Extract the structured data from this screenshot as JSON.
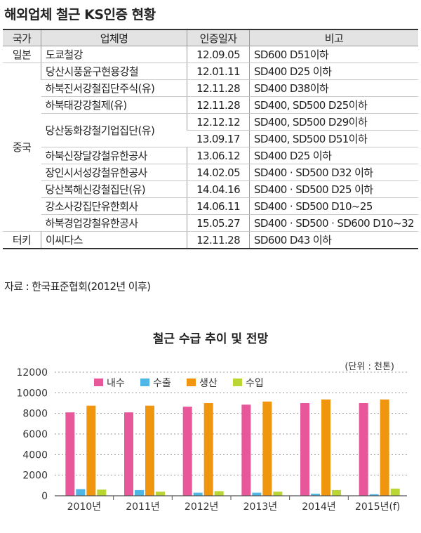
{
  "table": {
    "title": "해외업체 철근 KS인증 현황",
    "headers": [
      "국가",
      "업체명",
      "인증일자",
      "비고"
    ],
    "rows": [
      {
        "country": "일본",
        "company": "도쿄철강",
        "date": "12.09.05",
        "note": "SD600 D51이하"
      },
      {
        "country": "중국",
        "company": "당산시풍윤구현용강철",
        "date": "12.01.11",
        "note": "SD400 D25 이하"
      },
      {
        "country": "",
        "company": "하북진서강철집단주식(유)",
        "date": "12.11.28",
        "note": "SD400 D38이하"
      },
      {
        "country": "",
        "company": "하북태강강철제(유)",
        "date": "12.11.28",
        "note": "SD400, SD500 D25이하"
      },
      {
        "country": "",
        "company": "당산동화강철기업집단(유)",
        "date": "12.12.12",
        "note": "SD400, SD500 D29이하"
      },
      {
        "country": "",
        "company": "",
        "date": "13.09.17",
        "note": "SD400, SD500 D51이하"
      },
      {
        "country": "",
        "company": "하북신장달강철유한공사",
        "date": "13.06.12",
        "note": "SD400 D25 이하"
      },
      {
        "country": "",
        "company": "장인시서성강철유한공사",
        "date": "14.02.05",
        "note": "SD400 · SD500 D32 이하"
      },
      {
        "country": "",
        "company": "당산복해신강철집단(유)",
        "date": "14.04.16",
        "note": "SD400 · SD500 D25 이하"
      },
      {
        "country": "",
        "company": "강소사강집단유한회사",
        "date": "14.06.11",
        "note": "SD400 · SD500 D10~25"
      },
      {
        "country": "",
        "company": "하북경업강철유한공사",
        "date": "15.05.27",
        "note": "SD400 · SD500 · SD600 D10~32"
      },
      {
        "country": "터키",
        "company": "이씨다스",
        "date": "12.11.28",
        "note": "SD600 D43 이하"
      }
    ],
    "source": "자료 : 한국표준협회(2012년 이후)"
  },
  "chart_data": {
    "type": "bar",
    "title": "철근 수급 추이 및 전망",
    "unit_label": "(단위 : 천톤)",
    "categories": [
      "2010년",
      "2011년",
      "2012년",
      "2013년",
      "2014년",
      "2015년(f)"
    ],
    "series": [
      {
        "name": "내수",
        "color": "#e8579a",
        "values": [
          8100,
          8100,
          8650,
          8850,
          9000,
          9000
        ]
      },
      {
        "name": "수출",
        "color": "#4fb6e6",
        "values": [
          650,
          550,
          300,
          300,
          200,
          150
        ]
      },
      {
        "name": "생산",
        "color": "#f0960e",
        "values": [
          8750,
          8750,
          9000,
          9150,
          9350,
          9350
        ]
      },
      {
        "name": "수입",
        "color": "#b9d632",
        "values": [
          600,
          400,
          450,
          400,
          550,
          700
        ]
      }
    ],
    "yticks": [
      0,
      2000,
      4000,
      6000,
      8000,
      10000,
      12000
    ],
    "ylim": [
      0,
      12000
    ],
    "grid": true,
    "legend_position": "top-left"
  }
}
